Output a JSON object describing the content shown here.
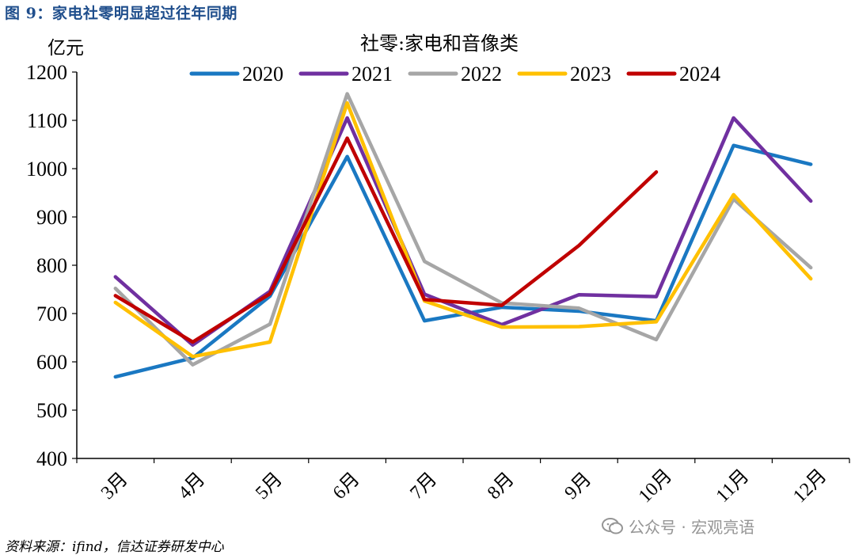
{
  "figure": {
    "title": "图 9：家电社零明显超过往年同期",
    "source": "资料来源：ifind，信达证券研发中心",
    "watermark": "公众号 · 宏观亮语"
  },
  "chart_data": {
    "type": "line",
    "title": "社零:家电和音像类",
    "ylabel": "亿元",
    "xlabel": "",
    "ylim": [
      400,
      1200
    ],
    "yticks": [
      400,
      500,
      600,
      700,
      800,
      900,
      1000,
      1100,
      1200
    ],
    "categories": [
      "3月",
      "4月",
      "5月",
      "6月",
      "7月",
      "8月",
      "9月",
      "10月",
      "11月",
      "12月"
    ],
    "legend_position": "top",
    "grid": false,
    "series": [
      {
        "name": "2020",
        "color": "#1a78c2",
        "values": [
          569,
          608,
          736,
          1025,
          685,
          713,
          705,
          685,
          1048,
          1009
        ]
      },
      {
        "name": "2021",
        "color": "#7030a0",
        "values": [
          776,
          635,
          746,
          1105,
          740,
          677,
          739,
          735,
          1105,
          933
        ]
      },
      {
        "name": "2022",
        "color": "#a6a6a6",
        "values": [
          752,
          594,
          678,
          1155,
          808,
          722,
          711,
          646,
          937,
          795
        ]
      },
      {
        "name": "2023",
        "color": "#ffc000",
        "values": [
          723,
          611,
          641,
          1136,
          726,
          672,
          673,
          683,
          946,
          772
        ]
      },
      {
        "name": "2024",
        "color": "#c00000",
        "values": [
          737,
          641,
          741,
          1063,
          729,
          717,
          841,
          993,
          null,
          null
        ]
      }
    ]
  }
}
